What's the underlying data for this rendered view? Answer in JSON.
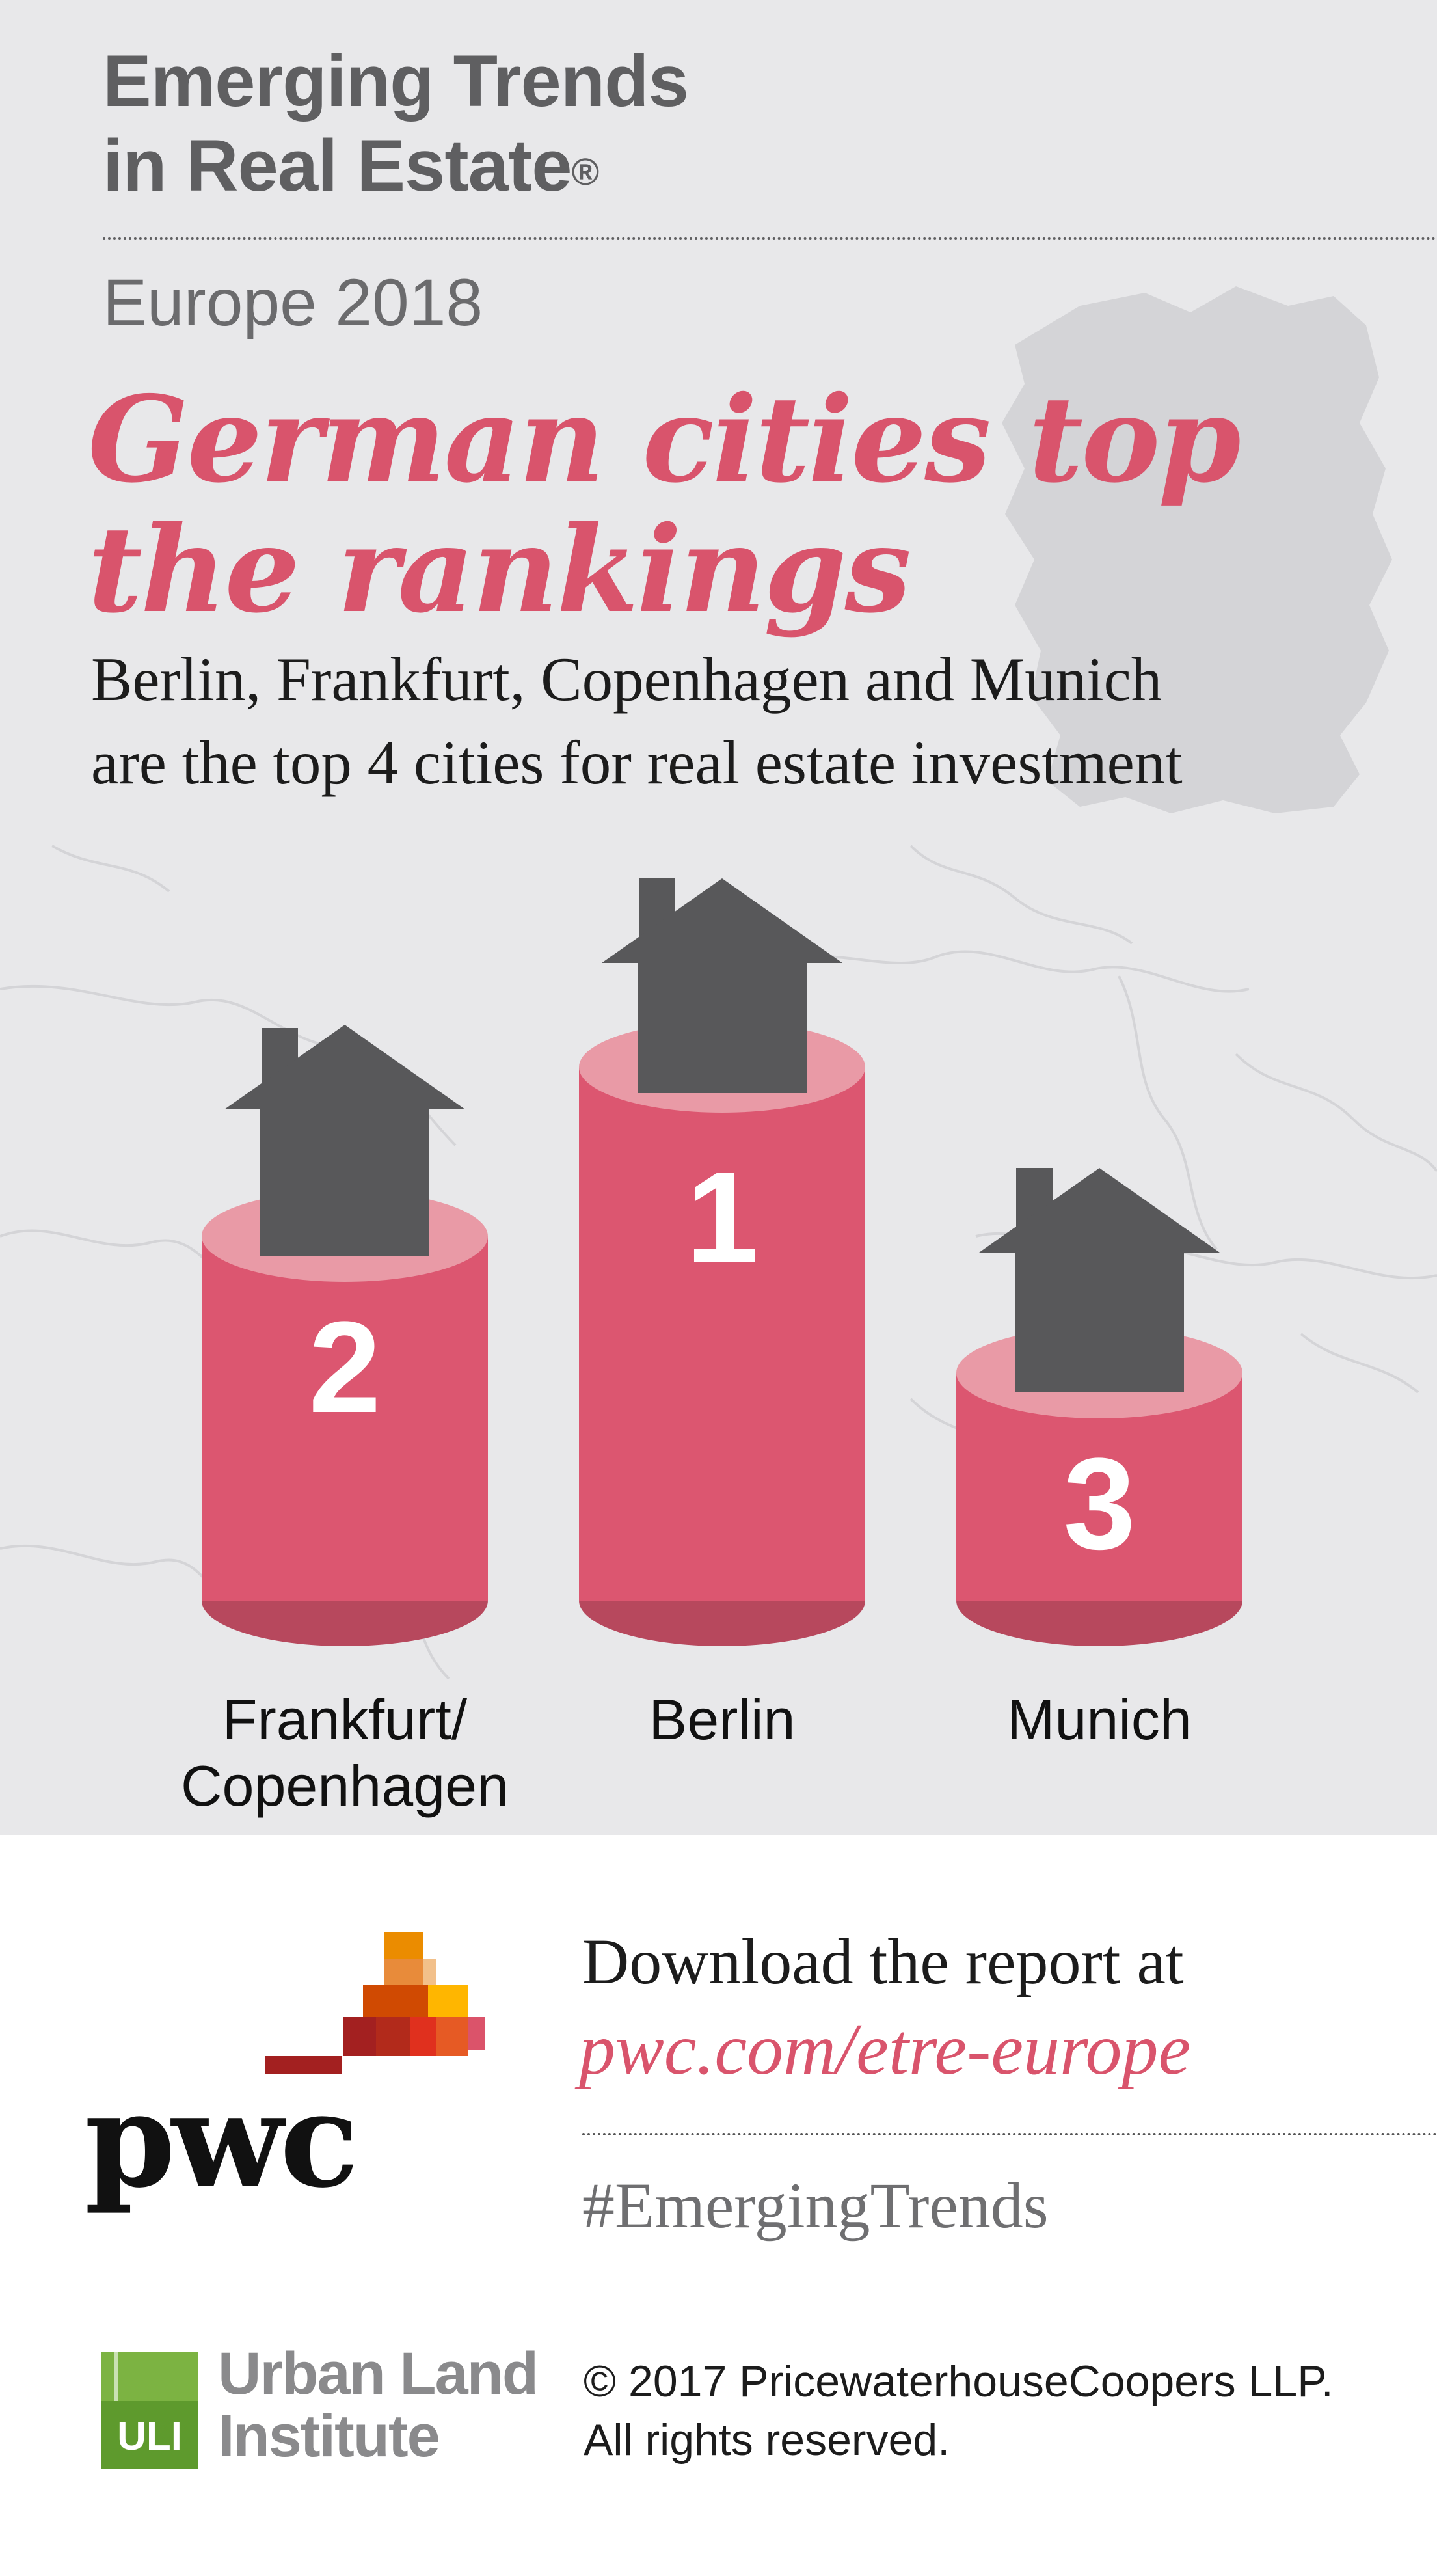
{
  "header": {
    "title_line1": "Emerging Trends",
    "title_line2": "in Real Estate",
    "title_mark": "®",
    "subtitle": "Europe 2018"
  },
  "headline": {
    "line1": "German cities top",
    "line2": "the rankings"
  },
  "deck": {
    "line1": "Berlin, Frankfurt, Copenhagen and Munich",
    "line2": "are the top 4 cities for real estate investment"
  },
  "podium": [
    {
      "rank": "2",
      "label_line1": "Frankfurt/",
      "label_line2": "Copenhagen"
    },
    {
      "rank": "1",
      "label_line1": "Berlin",
      "label_line2": ""
    },
    {
      "rank": "3",
      "label_line1": "Munich",
      "label_line2": ""
    }
  ],
  "footer": {
    "download_text": "Download the report at",
    "download_url": "pwc.com/etre-europe",
    "hashtag": "#EmergingTrends",
    "copyright_line1": "© 2017 PricewaterhouseCoopers LLP.",
    "copyright_line2": "All rights reserved.",
    "pwc_logo_text": "pwc",
    "uli_mark_text": "ULI",
    "uli_line1": "Urban Land",
    "uli_line2": "Institute"
  },
  "colors": {
    "accent_pink": "#d9546c",
    "cylinder_body": "#dc5670",
    "cylinder_top": "#e99aa6",
    "cylinder_bottom": "#b7485d",
    "house": "#58585a",
    "background": "#e8e8ea"
  }
}
